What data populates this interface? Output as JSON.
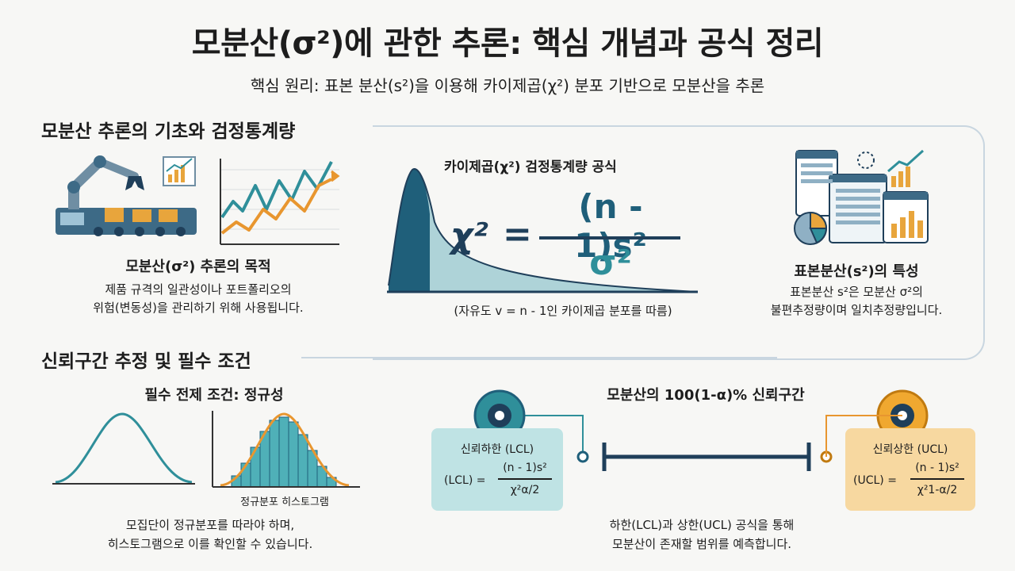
{
  "header": {
    "title": "모분산(σ²)에 관한 추론: 핵심 개념과 공식 정리",
    "subtitle": "핵심 원리: 표본 분산(s²)을 이용해 카이제곱(χ²) 분포 기반으로 모분산을 추론"
  },
  "section1": {
    "title": "모분산 추론의 기초와 검정통계량",
    "purpose": {
      "title": "모분산(σ²) 추론의 목적",
      "desc_line1": "제품 규격의 일관성이나 포트폴리오의",
      "desc_line2": "위험(변동성)을 관리하기 위해 사용됩니다."
    },
    "formula": {
      "title": "카이제곱(χ²) 검정통계량 공식",
      "lhs": "χ²",
      "eq": "=",
      "numerator": "(n - 1)s²",
      "denominator": "σ²",
      "note": "(자유도 v = n - 1인 카이제곱 분포를 따름)"
    },
    "sample_variance": {
      "title": "표본분산(s²)의 특성",
      "desc_line1": "표본분산 s²은 모분산 σ²의",
      "desc_line2": "불편추정량이며 일치추정량입니다."
    }
  },
  "section2": {
    "title": "신뢰구간 추정 및 필수 조건",
    "normality": {
      "title": "필수 전제 조건: 정규성",
      "histogram_label": "정규분포 히스토그램",
      "desc_line1": "모집단이 정규분포를 따라야 하며,",
      "desc_line2": "히스토그램으로 이를 확인할 수 있습니다."
    },
    "interval": {
      "title": "모분산의 100(1-α)% 신뢰구간",
      "lcl": {
        "label": "신뢰하한 (LCL)",
        "lhs": "(LCL) =",
        "numerator": "(n - 1)s²",
        "denominator": "χ²α/2"
      },
      "ucl": {
        "label": "신뢰상한 (UCL)",
        "lhs": "(UCL) =",
        "numerator": "(n - 1)s²",
        "denominator": "χ²1-α/2"
      },
      "desc_line1": "하한(LCL)과 상한(UCL) 공식을 통해",
      "desc_line2": "모분산이 존재할 범위를 예측합니다."
    }
  },
  "colors": {
    "teal": "#2f8f9a",
    "dark_teal": "#1f5f7a",
    "orange": "#e8962f",
    "yellow": "#f0a830",
    "light_teal_box": "#bfe3e4",
    "light_orange_box": "#f7d8a0",
    "navy": "#1f3f5a"
  },
  "icons": [
    "robot-arm-icon",
    "line-chart-icon",
    "dashboard-icon",
    "pie-chart-icon",
    "target-icon"
  ]
}
